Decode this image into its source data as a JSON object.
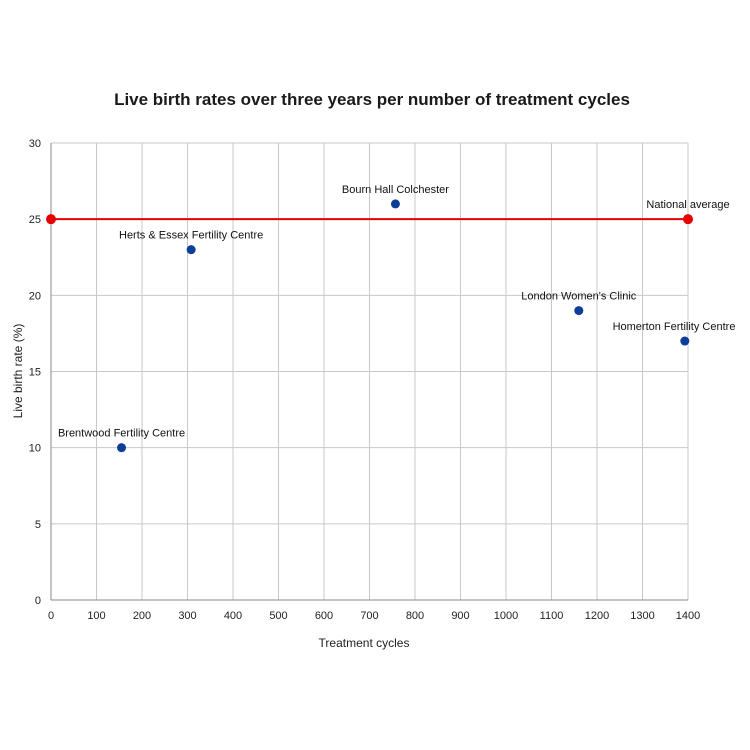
{
  "chart_data": {
    "type": "scatter",
    "title": "Live birth rates over three years per number of treatment cycles",
    "xlabel": "Treatment cycles",
    "ylabel": "Live birth rate (%)",
    "xlim": [
      0,
      1400
    ],
    "ylim": [
      0,
      30
    ],
    "xticks": [
      0,
      100,
      200,
      300,
      400,
      500,
      600,
      700,
      800,
      900,
      1000,
      1100,
      1200,
      1300,
      1400
    ],
    "yticks": [
      0,
      5,
      10,
      15,
      20,
      25,
      30
    ],
    "grid": true,
    "points": [
      {
        "label": "Brentwood Fertility Centre",
        "x": 155,
        "y": 10
      },
      {
        "label": "Herts & Essex Fertility Centre",
        "x": 308,
        "y": 23
      },
      {
        "label": "Bourn Hall Colchester",
        "x": 757,
        "y": 26
      },
      {
        "label": "London Women's Clinic",
        "x": 1160,
        "y": 19
      },
      {
        "label": "Homerton Fertility Centre",
        "x": 1393,
        "y": 17
      }
    ],
    "reference_line": {
      "label": "National average",
      "y": 25,
      "x_range": [
        0,
        1400
      ]
    },
    "colors": {
      "points": "#0d3d99",
      "reference": "#e60000",
      "grid": "#c8c8c8",
      "axis": "#888888"
    }
  }
}
